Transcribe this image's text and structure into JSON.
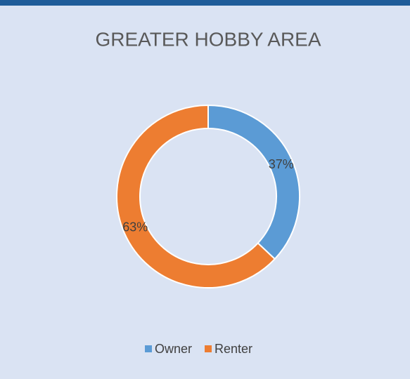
{
  "chart_data": {
    "type": "donut",
    "title": "GREATER HOBBY AREA",
    "categories": [
      "Owner",
      "Renter"
    ],
    "values": [
      37,
      63
    ],
    "value_labels": [
      "37%",
      "63%"
    ],
    "colors": [
      "#5b9bd5",
      "#ed7d31"
    ],
    "legend": "bottom"
  }
}
